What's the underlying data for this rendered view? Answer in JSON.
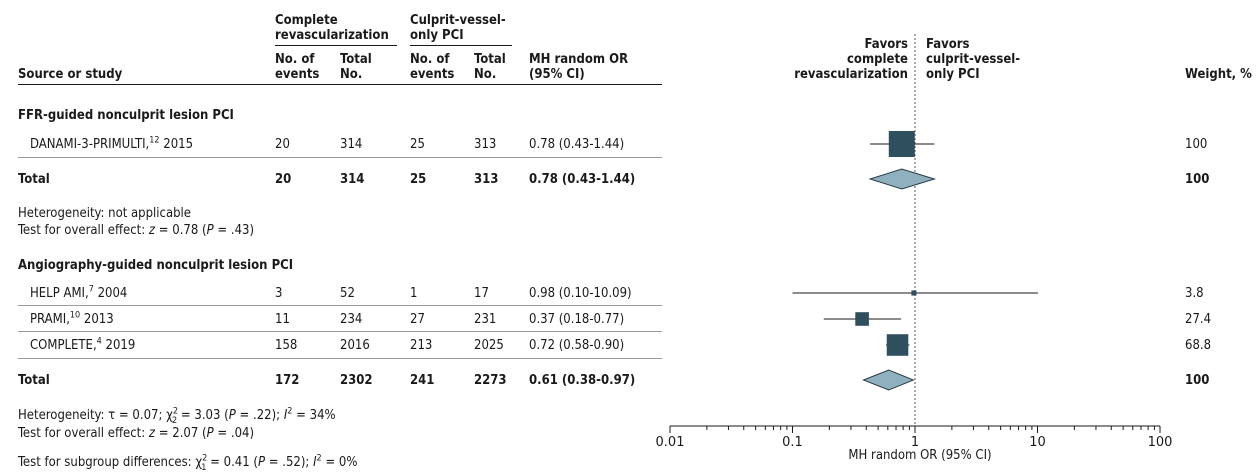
{
  "columns": {
    "source": "Source or study",
    "complete_group": [
      "Complete",
      "revascularization"
    ],
    "culprit_group": [
      "Culprit-vessel-",
      "only PCI"
    ],
    "events": [
      "No. of",
      "events"
    ],
    "total": [
      "Total",
      "No."
    ],
    "or": [
      "MH random OR",
      "(95% CI)"
    ],
    "favors_left": [
      "Favors",
      "complete",
      "revascularization"
    ],
    "favors_right": [
      "Favors",
      "culprit-vessel-",
      "only PCI"
    ],
    "weight": "Weight, %"
  },
  "subgroups": [
    {
      "title": "FFR-guided nonculprit lesion PCI",
      "studies": [
        {
          "name": "DANAMI-3-PRIMULTI,",
          "ref": "12",
          "year": " 2015",
          "ce": "20",
          "cn": "314",
          "ve": "25",
          "vn": "313",
          "or_text": "0.78 (0.43-1.44)",
          "weight": "100"
        }
      ],
      "total": {
        "label": "Total",
        "ce": "20",
        "cn": "314",
        "ve": "25",
        "vn": "313",
        "or_text": "0.78 (0.43-1.44)",
        "weight": "100"
      },
      "heterogeneity": "Heterogeneity: not applicable",
      "overall_effect": {
        "prefix": "Test for overall effect: ",
        "z": "z",
        "val": " = 0.78 (",
        "p": "P",
        "end": " = .43)"
      }
    },
    {
      "title": "Angiography-guided nonculprit lesion PCI",
      "studies": [
        {
          "name": "HELP AMI,",
          "ref": "7",
          "year": " 2004",
          "ce": "3",
          "cn": "52",
          "ve": "1",
          "vn": "17",
          "or_text": "0.98 (0.10-10.09)",
          "weight": "3.8"
        },
        {
          "name": "PRAMI,",
          "ref": "10",
          "year": " 2013",
          "ce": "11",
          "cn": "234",
          "ve": "27",
          "vn": "231",
          "or_text": "0.37 (0.18-0.77)",
          "weight": "27.4"
        },
        {
          "name": "COMPLETE,",
          "ref": "4",
          "year": " 2019",
          "ce": "158",
          "cn": "2016",
          "ve": "213",
          "vn": "2025",
          "or_text": "0.72 (0.58-0.90)",
          "weight": "68.8"
        }
      ],
      "total": {
        "label": "Total",
        "ce": "172",
        "cn": "2302",
        "ve": "241",
        "vn": "2273",
        "or_text": "0.61 (0.38-0.97)",
        "weight": "100"
      },
      "heterogeneity_parts": {
        "a": "Heterogeneity: τ = 0.07; χ",
        "sup": "2",
        "sub": "2",
        "b": " = 3.03 (",
        "p": "P",
        "c": " = .22); ",
        "i": "I",
        "isup": "2",
        "d": " = 34%"
      },
      "overall_effect": {
        "prefix": "Test for overall effect: ",
        "z": "z",
        "val": " = 2.07 (",
        "p": "P",
        "end": " = .04)"
      }
    }
  ],
  "subgroup_diff": {
    "a": "Test for subgroup differences: χ",
    "sup": "2",
    "sub": "1",
    "b": " = 0.41 (",
    "p": "P",
    "c": " = .52); ",
    "i": "I",
    "isup": "2",
    "d": " = 0%"
  },
  "chart_data": {
    "type": "forest",
    "xscale": "log",
    "xlim": [
      0.01,
      100
    ],
    "xticks": [
      "0.01",
      "0.1",
      "1",
      "10",
      "100"
    ],
    "xlabel": "MH random OR (95% CI)",
    "null_value": 1,
    "studies": [
      {
        "id": "danami",
        "or": 0.78,
        "lo": 0.43,
        "hi": 1.44,
        "weight": 100
      },
      {
        "id": "helpami",
        "or": 0.98,
        "lo": 0.1,
        "hi": 10.09,
        "weight": 3.8
      },
      {
        "id": "prami",
        "or": 0.37,
        "lo": 0.18,
        "hi": 0.77,
        "weight": 27.4
      },
      {
        "id": "complete",
        "or": 0.72,
        "lo": 0.58,
        "hi": 0.9,
        "weight": 68.8
      }
    ],
    "pooled": [
      {
        "id": "total1",
        "or": 0.78,
        "lo": 0.43,
        "hi": 1.44
      },
      {
        "id": "total2",
        "or": 0.61,
        "lo": 0.38,
        "hi": 0.97
      }
    ],
    "colors": {
      "square": "#2f4f5f",
      "diamond": "#8fb1bf",
      "line": "#1a1a1a"
    }
  }
}
